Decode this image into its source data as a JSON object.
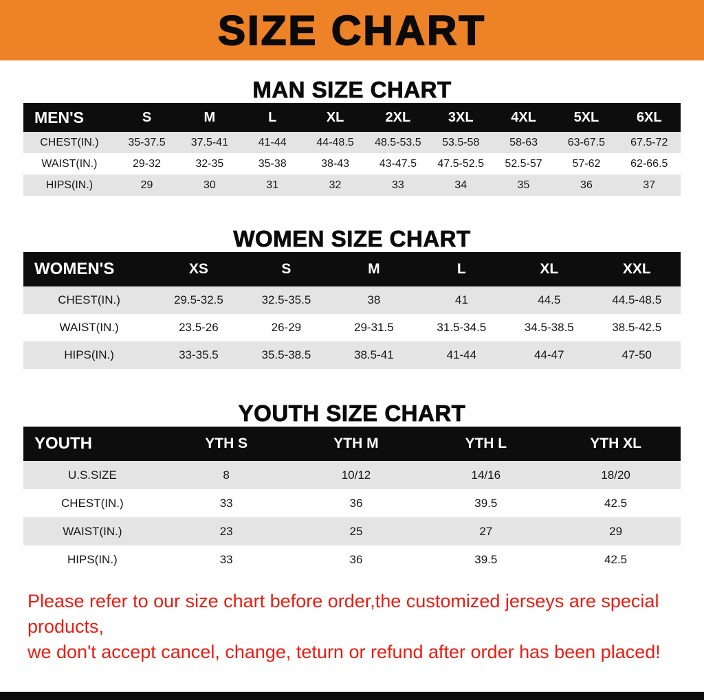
{
  "banner": {
    "title": "SIZE CHART"
  },
  "colors": {
    "banner_bg": "#EE8227",
    "table_header_bg": "#0D0D0D",
    "table_header_text": "#FFFFFF",
    "row_stripe": "#E4E4E4",
    "footer_text": "#EC1B10"
  },
  "sections": [
    {
      "id": "man",
      "title": "MAN SIZE CHART",
      "header": [
        "MEN'S",
        "S",
        "M",
        "L",
        "XL",
        "2XL",
        "3XL",
        "4XL",
        "5XL",
        "6XL"
      ],
      "rows": [
        [
          "CHEST(IN.)",
          "35-37.5",
          "37.5-41",
          "41-44",
          "44-48.5",
          "48.5-53.5",
          "53.5-58",
          "58-63",
          "63-67.5",
          "67.5-72"
        ],
        [
          "WAIST(IN.)",
          "29-32",
          "32-35",
          "35-38",
          "38-43",
          "43-47.5",
          "47.5-52.5",
          "52.5-57",
          "57-62",
          "62-66.5"
        ],
        [
          "HIPS(IN.)",
          "29",
          "30",
          "31",
          "32",
          "33",
          "34",
          "35",
          "36",
          "37"
        ]
      ]
    },
    {
      "id": "women",
      "title": "WOMEN SIZE CHART",
      "header": [
        "WOMEN'S",
        "XS",
        "S",
        "M",
        "L",
        "XL",
        "XXL"
      ],
      "rows": [
        [
          "CHEST(IN.)",
          "29.5-32.5",
          "32.5-35.5",
          "38",
          "41",
          "44.5",
          "44.5-48.5"
        ],
        [
          "WAIST(IN.)",
          "23.5-26",
          "26-29",
          "29-31.5",
          "31.5-34.5",
          "34.5-38.5",
          "38.5-42.5"
        ],
        [
          "HIPS(IN.)",
          "33-35.5",
          "35.5-38.5",
          "38.5-41",
          "41-44",
          "44-47",
          "47-50"
        ]
      ]
    },
    {
      "id": "youth",
      "title": "YOUTH SIZE CHART",
      "header": [
        "YOUTH",
        "YTH S",
        "YTH M",
        "YTH L",
        "YTH XL"
      ],
      "rows": [
        [
          "U.S.SIZE",
          "8",
          "10/12",
          "14/16",
          "18/20"
        ],
        [
          "CHEST(IN.)",
          "33",
          "36",
          "39.5",
          "42.5"
        ],
        [
          "WAIST(IN.)",
          "23",
          "25",
          "27",
          "29"
        ],
        [
          "HIPS(IN.)",
          "33",
          "36",
          "39.5",
          "42.5"
        ]
      ]
    }
  ],
  "footer": {
    "lines": [
      "Please refer to our size chart before order,the customized jerseys are special products,",
      "we don't accept cancel, change, teturn or refund after order has been placed!"
    ]
  }
}
